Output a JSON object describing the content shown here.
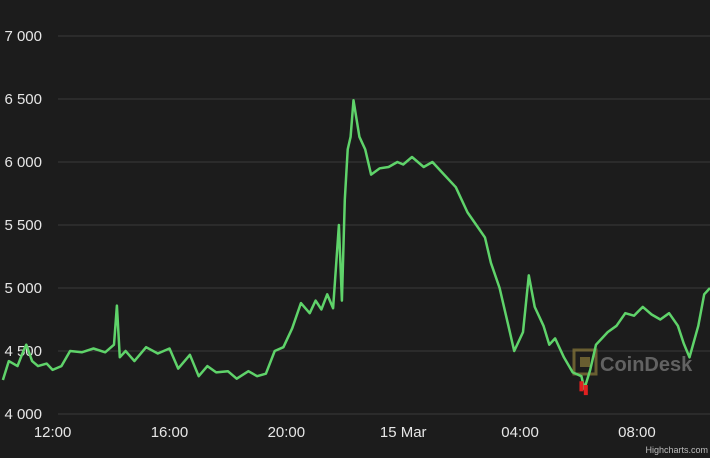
{
  "chart_data": {
    "type": "line",
    "title": "",
    "xlabel": "",
    "ylabel": "",
    "ylim": [
      4000,
      7000
    ],
    "y_ticks": [
      "7 000",
      "6 500",
      "6 000",
      "5 500",
      "5 000",
      "4 500",
      "4 000"
    ],
    "y_tick_values": [
      7000,
      6500,
      6000,
      5500,
      5000,
      4500,
      4000
    ],
    "x_ticks": [
      "12:00",
      "16:00",
      "20:00",
      "15 Mar",
      "04:00",
      "08:00"
    ],
    "x_tick_hours": [
      12,
      16,
      20,
      24,
      28,
      32
    ],
    "xlim_hours": [
      10.2,
      34.5
    ],
    "grid": true,
    "colors": {
      "up": "#5fd36a",
      "down": "#e02020",
      "grid": "#3a3a3a",
      "background": "#1c1c1c"
    },
    "series": [
      {
        "x": [
          10.3,
          10.5,
          10.8,
          11.0,
          11.1,
          11.3,
          11.5,
          11.8,
          12.0,
          12.3,
          12.6,
          13.0,
          13.4,
          13.8,
          14.1,
          14.2,
          14.3,
          14.5,
          14.8,
          15.2,
          15.6,
          16.0,
          16.3,
          16.7,
          17.0,
          17.3,
          17.6,
          18.0,
          18.3,
          18.7,
          19.0,
          19.3,
          19.6,
          19.9,
          20.2,
          20.5,
          20.8,
          21.0,
          21.2,
          21.4,
          21.6,
          21.8,
          21.9,
          22.0,
          22.1,
          22.2,
          22.3,
          22.5,
          22.7,
          22.9,
          23.2,
          23.5,
          23.8,
          24.0,
          24.3,
          24.7,
          25.0,
          25.4,
          25.8,
          26.2,
          26.5,
          26.8,
          27.0,
          27.3,
          27.6,
          27.8,
          28.0,
          28.1,
          28.3,
          28.5,
          28.8,
          29.0,
          29.2,
          29.5,
          29.8,
          30.1,
          30.2,
          30.4,
          30.6,
          30.8,
          31.0,
          31.3,
          31.6,
          31.9,
          32.2,
          32.5,
          32.8,
          33.1,
          33.4,
          33.6,
          33.8,
          34.1,
          34.3,
          34.5
        ],
        "values": [
          4270,
          4420,
          4380,
          4500,
          4550,
          4420,
          4380,
          4400,
          4350,
          4380,
          4500,
          4490,
          4520,
          4490,
          4550,
          4860,
          4450,
          4500,
          4420,
          4530,
          4480,
          4520,
          4360,
          4470,
          4300,
          4380,
          4330,
          4340,
          4280,
          4340,
          4300,
          4320,
          4500,
          4530,
          4680,
          4880,
          4800,
          4900,
          4830,
          4950,
          4840,
          5500,
          4900,
          5700,
          6100,
          6200,
          6490,
          6200,
          6100,
          5900,
          5950,
          5960,
          6000,
          5980,
          6040,
          5960,
          6000,
          5900,
          5800,
          5600,
          5500,
          5400,
          5200,
          5000,
          4700,
          4500,
          4600,
          4650,
          5100,
          4850,
          4700,
          4550,
          4600,
          4450,
          4330,
          4300,
          4200,
          4350,
          4550,
          4600,
          4650,
          4700,
          4800,
          4780,
          4850,
          4790,
          4750,
          4800,
          4700,
          4560,
          4450,
          4700,
          4950,
          5000
        ]
      }
    ],
    "dip_markers": [
      {
        "x": 30.1,
        "value": 4180
      },
      {
        "x": 30.25,
        "value": 4150
      }
    ]
  },
  "watermark": {
    "text": "CoinDesk"
  },
  "credit": {
    "text": "Highcharts.com"
  }
}
